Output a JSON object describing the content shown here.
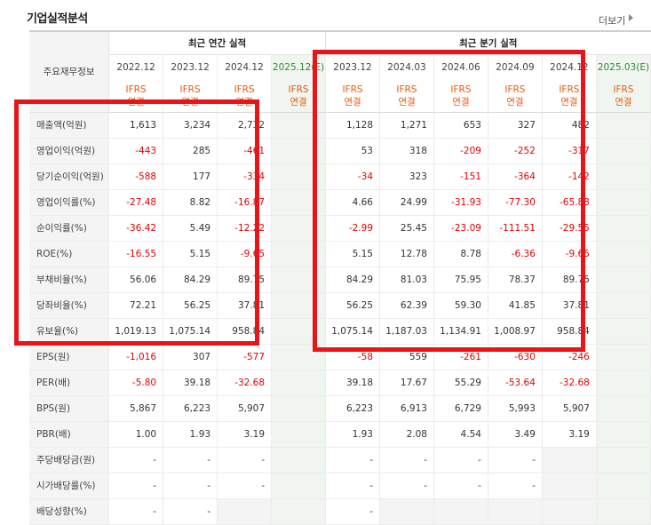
{
  "section_title": "기업실적분석",
  "more_link": "더보기",
  "headers": {
    "row_label": "주요재무정보",
    "annual_group": "최근 연간 실적",
    "quarter_group": "최근 분기 실적"
  },
  "periods": [
    "2022.12",
    "2023.12",
    "2024.12",
    "2025.12(E)",
    "2023.12",
    "2024.03",
    "2024.06",
    "2024.09",
    "2024.12",
    "2025.03(E)"
  ],
  "ifrs_line1": "IFRS",
  "ifrs_line2": "연결",
  "rows": [
    {
      "label": "매출액(억원)",
      "values": [
        "1,613",
        "3,234",
        "2,732",
        "",
        "1,128",
        "1,271",
        "653",
        "327",
        "482",
        ""
      ]
    },
    {
      "label": "영업이익(억원)",
      "values": [
        "-443",
        "285",
        "-461",
        "",
        "53",
        "318",
        "-209",
        "-252",
        "-317",
        ""
      ]
    },
    {
      "label": "당기순이익(억원)",
      "values": [
        "-588",
        "177",
        "-334",
        "",
        "-34",
        "323",
        "-151",
        "-364",
        "-142",
        ""
      ]
    },
    {
      "label": "영업이익률(%)",
      "values": [
        "-27.48",
        "8.82",
        "-16.87",
        "",
        "4.66",
        "24.99",
        "-31.93",
        "-77.30",
        "-65.88",
        ""
      ]
    },
    {
      "label": "순이익률(%)",
      "values": [
        "-36.42",
        "5.49",
        "-12.22",
        "",
        "-2.99",
        "25.45",
        "-23.09",
        "-111.51",
        "-29.55",
        ""
      ]
    },
    {
      "label": "ROE(%)",
      "values": [
        "-16.55",
        "5.15",
        "-9.65",
        "",
        "5.15",
        "12.78",
        "8.78",
        "-6.36",
        "-9.65",
        ""
      ]
    },
    {
      "label": "부채비율(%)",
      "values": [
        "56.06",
        "84.29",
        "89.75",
        "",
        "84.29",
        "81.03",
        "75.95",
        "78.37",
        "89.75",
        ""
      ]
    },
    {
      "label": "당좌비율(%)",
      "values": [
        "72.21",
        "56.25",
        "37.81",
        "",
        "56.25",
        "62.39",
        "59.30",
        "41.85",
        "37.81",
        ""
      ]
    },
    {
      "label": "유보율(%)",
      "values": [
        "1,019.13",
        "1,075.14",
        "958.84",
        "",
        "1,075.14",
        "1,187.03",
        "1,134.91",
        "1,008.97",
        "958.84",
        ""
      ]
    },
    {
      "label": "EPS(원)",
      "values": [
        "-1,016",
        "307",
        "-577",
        "",
        "-58",
        "559",
        "-261",
        "-630",
        "-246",
        ""
      ]
    },
    {
      "label": "PER(배)",
      "values": [
        "-5.80",
        "39.18",
        "-32.68",
        "",
        "39.18",
        "17.67",
        "55.29",
        "-53.64",
        "-32.68",
        ""
      ]
    },
    {
      "label": "BPS(원)",
      "values": [
        "5,867",
        "6,223",
        "5,907",
        "",
        "6,223",
        "6,913",
        "6,729",
        "5,993",
        "5,907",
        ""
      ]
    },
    {
      "label": "PBR(배)",
      "values": [
        "1.00",
        "1.93",
        "3.19",
        "",
        "1.93",
        "2.08",
        "4.54",
        "3.49",
        "3.19",
        ""
      ]
    },
    {
      "label": "주당배당금(원)",
      "values": [
        "-",
        "-",
        "-",
        "",
        "-",
        "-",
        "-",
        "-",
        "",
        ""
      ]
    },
    {
      "label": "시가배당률(%)",
      "values": [
        "-",
        "-",
        "-",
        "",
        "-",
        "-",
        "-",
        "-",
        "",
        ""
      ]
    },
    {
      "label": "배당성향(%)",
      "values": [
        "-",
        "-",
        "",
        "",
        "-",
        "",
        "",
        "",
        "",
        ""
      ]
    }
  ],
  "colors": {
    "negative": "#e40000",
    "ifrs": "#e8590c",
    "estimate_bg": "#f0f6ef",
    "highlight": "#e8141a"
  }
}
